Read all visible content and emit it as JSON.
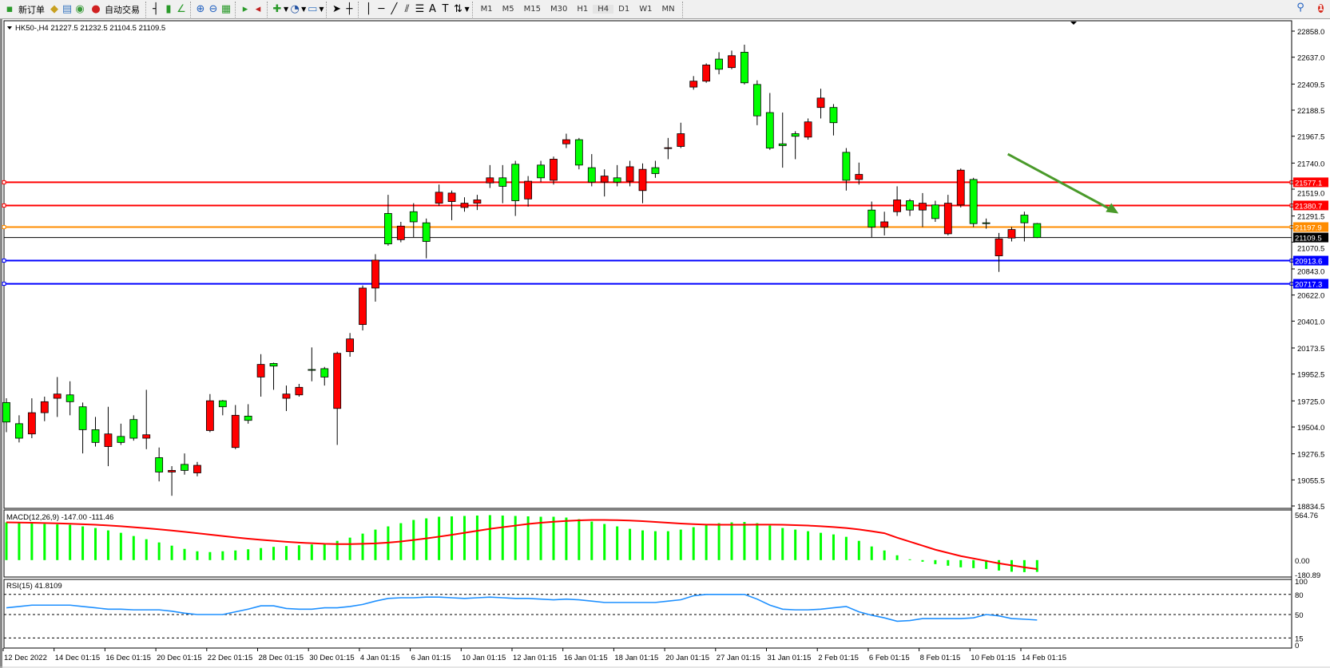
{
  "toolbar": {
    "new_order": "新订单",
    "auto_trading": "自动交易",
    "timeframes": [
      "M1",
      "M5",
      "M15",
      "M30",
      "H1",
      "H4",
      "D1",
      "W1",
      "MN"
    ],
    "active_timeframe": "H4",
    "notification_count": "1"
  },
  "chart_data": {
    "type": "candlestick",
    "symbol_header": "HK50-,H4  21227.5 21232.5 21104.5 21109.5",
    "colors": {
      "bull": "#ff0000",
      "bear": "#00ff00",
      "wick": "#000000"
    },
    "price_ticks": [
      "22858.0",
      "22637.0",
      "22409.5",
      "22188.5",
      "21967.5",
      "21740.0",
      "21519.0",
      "21291.5",
      "21070.5",
      "20843.0",
      "20622.0",
      "20401.0",
      "20173.5",
      "19952.5",
      "19725.0",
      "19504.0",
      "19276.5",
      "19055.5",
      "18834.5"
    ],
    "ylim": [
      18834.5,
      22858.0
    ],
    "levels": [
      {
        "value": 21577.1,
        "label": "21577.1",
        "color": "#ff0000"
      },
      {
        "value": 21380.7,
        "label": "21380.7",
        "color": "#ff0000"
      },
      {
        "value": 21197.9,
        "label": "21197.9",
        "color": "#ff8c00"
      },
      {
        "value": 21109.5,
        "label": "21109.5",
        "color": "#000000"
      },
      {
        "value": 20913.6,
        "label": "20913.6",
        "color": "#0000ff"
      },
      {
        "value": 20717.3,
        "label": "20717.3",
        "color": "#0000ff"
      }
    ],
    "ohlc": [
      [
        19711,
        19747,
        19460,
        19546
      ],
      [
        19532,
        19603,
        19373,
        19409
      ],
      [
        19445,
        19747,
        19409,
        19625
      ],
      [
        19625,
        19761,
        19553,
        19718
      ],
      [
        19747,
        19927,
        19589,
        19783
      ],
      [
        19776,
        19891,
        19603,
        19718
      ],
      [
        19675,
        19711,
        19280,
        19481
      ],
      [
        19481,
        19589,
        19338,
        19373
      ],
      [
        19338,
        19675,
        19172,
        19445
      ],
      [
        19424,
        19532,
        19352,
        19373
      ],
      [
        19567,
        19603,
        19388,
        19409
      ],
      [
        19409,
        19819,
        19316,
        19438
      ],
      [
        19244,
        19330,
        19043,
        19122
      ],
      [
        19122,
        19172,
        18921,
        19136
      ],
      [
        19187,
        19280,
        19100,
        19136
      ],
      [
        19115,
        19208,
        19086,
        19179
      ],
      [
        19474,
        19783,
        19460,
        19726
      ],
      [
        19726,
        19733,
        19603,
        19675
      ],
      [
        19330,
        19690,
        19316,
        19603
      ],
      [
        19596,
        19697,
        19532,
        19560
      ],
      [
        19927,
        20121,
        19761,
        20034
      ],
      [
        20042,
        20049,
        19819,
        20020
      ],
      [
        19747,
        19855,
        19639,
        19783
      ],
      [
        19776,
        19869,
        19761,
        19840
      ],
      [
        19991,
        20178,
        19891,
        19984
      ],
      [
        19998,
        20013,
        19855,
        19927
      ],
      [
        19661,
        20142,
        19352,
        20128
      ],
      [
        20142,
        20300,
        20099,
        20250
      ],
      [
        20372,
        20703,
        20322,
        20681
      ],
      [
        20681,
        20968,
        20566,
        20918
      ],
      [
        21313,
        21471,
        21040,
        21055
      ],
      [
        21091,
        21242,
        21069,
        21206
      ],
      [
        21328,
        21400,
        21112,
        21242
      ],
      [
        21234,
        21270,
        20933,
        21076
      ],
      [
        21400,
        21558,
        21378,
        21493
      ],
      [
        21414,
        21507,
        21256,
        21486
      ],
      [
        21364,
        21450,
        21328,
        21400
      ],
      [
        21400,
        21471,
        21342,
        21428
      ],
      [
        21572,
        21723,
        21529,
        21615
      ],
      [
        21615,
        21723,
        21400,
        21543
      ],
      [
        21730,
        21759,
        21292,
        21421
      ],
      [
        21436,
        21630,
        21371,
        21586
      ],
      [
        21723,
        21759,
        21579,
        21615
      ],
      [
        21594,
        21795,
        21558,
        21773
      ],
      [
        21903,
        21989,
        21867,
        21938
      ],
      [
        21938,
        21953,
        21687,
        21723
      ],
      [
        21701,
        21816,
        21543,
        21579
      ],
      [
        21579,
        21687,
        21457,
        21630
      ],
      [
        21615,
        21723,
        21543,
        21579
      ],
      [
        21586,
        21759,
        21543,
        21709
      ],
      [
        21507,
        21737,
        21400,
        21687
      ],
      [
        21701,
        21759,
        21615,
        21651
      ],
      [
        21867,
        21953,
        21773,
        21870
      ],
      [
        21881,
        22082,
        21867,
        21989
      ],
      [
        22384,
        22477,
        22362,
        22434
      ],
      [
        22434,
        22585,
        22420,
        22571
      ],
      [
        22621,
        22679,
        22492,
        22535
      ],
      [
        22549,
        22693,
        22535,
        22650
      ],
      [
        22679,
        22743,
        22406,
        22420
      ],
      [
        22406,
        22441,
        22061,
        22140
      ],
      [
        22168,
        22334,
        21852,
        21867
      ],
      [
        21903,
        22168,
        21701,
        21888
      ],
      [
        21989,
        22010,
        21773,
        21967
      ],
      [
        21960,
        22118,
        21938,
        22089
      ],
      [
        22211,
        22370,
        22118,
        22291
      ],
      [
        22211,
        22240,
        21974,
        22082
      ],
      [
        21831,
        21867,
        21507,
        21594
      ],
      [
        21601,
        21744,
        21558,
        21644
      ],
      [
        21342,
        21414,
        21112,
        21198
      ],
      [
        21198,
        21328,
        21127,
        21242
      ],
      [
        21328,
        21543,
        21292,
        21428
      ],
      [
        21421,
        21436,
        21292,
        21342
      ],
      [
        21342,
        21486,
        21198,
        21400
      ],
      [
        21385,
        21421,
        21242,
        21270
      ],
      [
        21141,
        21471,
        21127,
        21400
      ],
      [
        21385,
        21694,
        21364,
        21680
      ],
      [
        21601,
        21615,
        21198,
        21227
      ],
      [
        21234,
        21270,
        21184,
        21227
      ],
      [
        20954,
        21148,
        20818,
        21098
      ],
      [
        21105,
        21198,
        21076,
        21177
      ],
      [
        21299,
        21328,
        21076,
        21234
      ],
      [
        21227.5,
        21232.5,
        21104.5,
        21109.5
      ]
    ],
    "date_labels": [
      "12 Dec 2022",
      "14 Dec 01:15",
      "16 Dec 01:15",
      "20 Dec 01:15",
      "22 Dec 01:15",
      "28 Dec 01:15",
      "30 Dec 01:15",
      "4 Jan 01:15",
      "6 Jan 01:15",
      "10 Jan 01:15",
      "12 Jan 01:15",
      "16 Jan 01:15",
      "18 Jan 01:15",
      "20 Jan 01:15",
      "27 Jan 01:15",
      "31 Jan 01:15",
      "2 Feb 01:15",
      "6 Feb 01:15",
      "8 Feb 01:15",
      "10 Feb 01:15",
      "14 Feb 01:15"
    ],
    "trend_arrow_color": "#4a9a2a",
    "macd": {
      "label": "MACD(12,26,9) -147.00 -111.46",
      "ticks": [
        "564.76",
        "0.00",
        "-180.89"
      ],
      "ylim": [
        -180.89,
        564.76
      ],
      "histogram_color": "#00ff00",
      "signal_color": "#ff0000",
      "main": [
        470,
        460,
        455,
        450,
        445,
        440,
        420,
        400,
        370,
        340,
        300,
        260,
        220,
        180,
        140,
        110,
        100,
        110,
        120,
        135,
        150,
        165,
        175,
        185,
        195,
        210,
        240,
        280,
        330,
        380,
        420,
        460,
        500,
        520,
        540,
        545,
        550,
        555,
        560,
        555,
        550,
        545,
        540,
        540,
        530,
        510,
        480,
        450,
        420,
        390,
        370,
        360,
        360,
        380,
        410,
        440,
        460,
        470,
        475,
        460,
        430,
        400,
        380,
        360,
        340,
        320,
        290,
        240,
        170,
        120,
        60,
        10,
        -20,
        -50,
        -70,
        -90,
        -100,
        -110,
        -130,
        -145,
        -150,
        -147
      ],
      "signal": [
        470,
        468,
        465,
        462,
        458,
        453,
        447,
        440,
        432,
        422,
        410,
        397,
        383,
        368,
        352,
        335,
        318,
        300,
        283,
        267,
        253,
        240,
        228,
        218,
        210,
        203,
        200,
        200,
        203,
        208,
        218,
        232,
        250,
        270,
        292,
        315,
        340,
        365,
        390,
        410,
        430,
        450,
        465,
        478,
        488,
        495,
        500,
        500,
        498,
        493,
        485,
        475,
        465,
        455,
        448,
        442,
        440,
        440,
        441,
        442,
        442,
        440,
        436,
        430,
        422,
        412,
        400,
        382,
        360,
        335,
        280,
        230,
        180,
        130,
        90,
        50,
        20,
        -10,
        -40,
        -65,
        -90,
        -111.46
      ]
    },
    "rsi": {
      "label": "RSI(15) 41.8109",
      "ticks": [
        "100",
        "80",
        "50",
        "15",
        "0"
      ],
      "levels": [
        80,
        50,
        15
      ],
      "color": "#1e90ff",
      "values": [
        60,
        62,
        64,
        64,
        64,
        64,
        62,
        60,
        58,
        58,
        57,
        57,
        57,
        55,
        52,
        50,
        50,
        50,
        54,
        58,
        63,
        63,
        59,
        58,
        58,
        60,
        60,
        62,
        65,
        70,
        74,
        75,
        75,
        76,
        76,
        75,
        74,
        75,
        76,
        75,
        74,
        74,
        73,
        72,
        73,
        72,
        70,
        68,
        68,
        68,
        68,
        68,
        70,
        72,
        78,
        80,
        80,
        80,
        80,
        73,
        64,
        58,
        57,
        57,
        58,
        60,
        62,
        54,
        49,
        45,
        40,
        41,
        44,
        44,
        44,
        44,
        45,
        50,
        48,
        44,
        43,
        41.81
      ]
    }
  }
}
